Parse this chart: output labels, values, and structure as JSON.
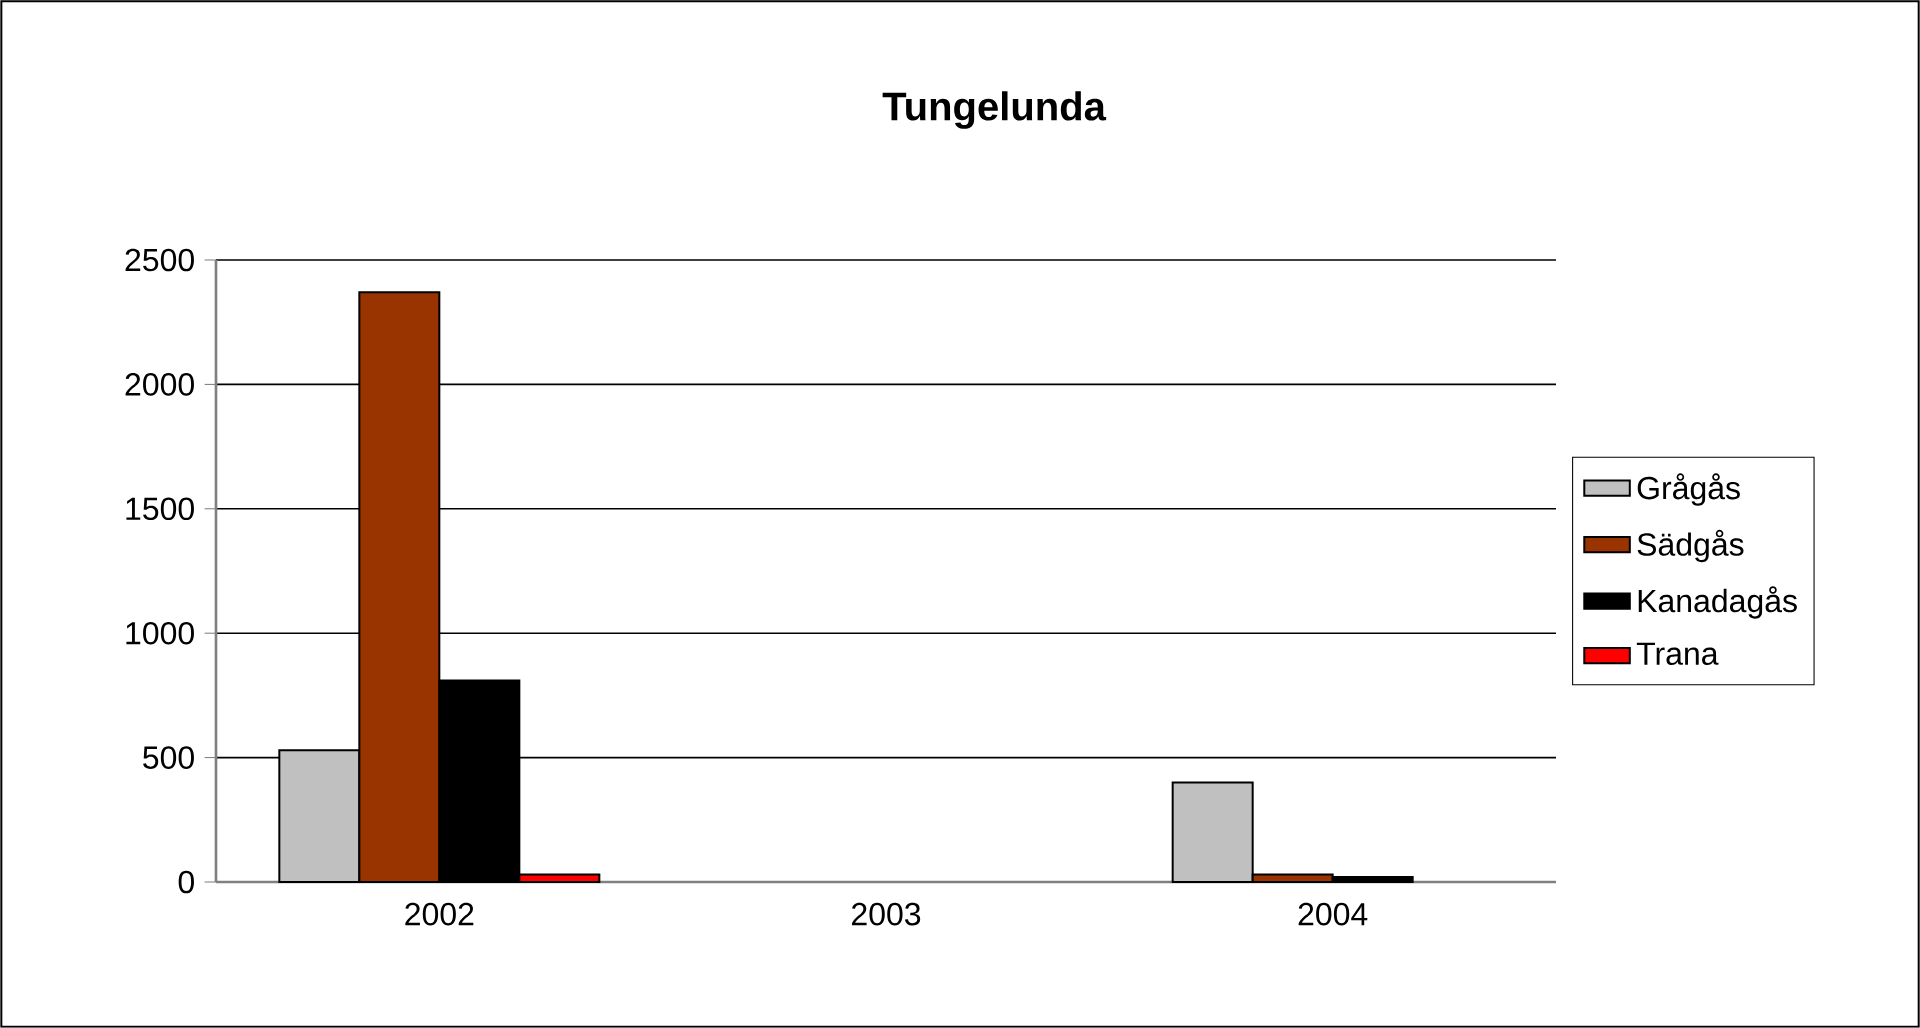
{
  "chart_data": {
    "type": "bar",
    "title": "Tungelunda",
    "categories": [
      "2002",
      "2003",
      "2004"
    ],
    "series": [
      {
        "name": "Grågås",
        "color": "#c0c0c0",
        "values": [
          530,
          null,
          400
        ]
      },
      {
        "name": "Sädgås",
        "color": "#993300",
        "values": [
          2370,
          null,
          30
        ]
      },
      {
        "name": "Kanadagås",
        "color": "#000000",
        "values": [
          810,
          null,
          20
        ]
      },
      {
        "name": "Trana",
        "color": "#ff0000",
        "values": [
          30,
          null,
          null
        ]
      }
    ],
    "ylim": [
      0,
      2500
    ],
    "yticks": [
      0,
      500,
      1000,
      1500,
      2000,
      2500
    ],
    "grid": "y",
    "legend": "right"
  }
}
